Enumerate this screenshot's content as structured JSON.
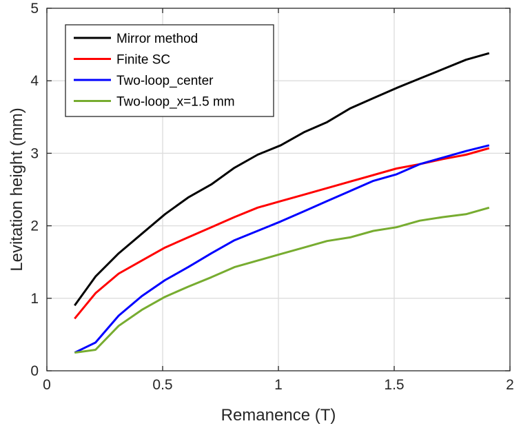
{
  "chart_data": {
    "type": "line",
    "title": "",
    "xlabel": "Remanence (T)",
    "ylabel": "Levitation height (mm)",
    "xlim": [
      0,
      2
    ],
    "ylim": [
      0,
      5
    ],
    "xticks": [
      0,
      0.5,
      1,
      1.5,
      2
    ],
    "xtick_labels": [
      "0",
      "0.5",
      "1",
      "1.5",
      "2"
    ],
    "yticks": [
      0,
      1,
      2,
      3,
      4,
      5
    ],
    "ytick_labels": [
      "0",
      "1",
      "2",
      "3",
      "4",
      "5"
    ],
    "grid": true,
    "legend_position": "top-left",
    "x": [
      0.12,
      0.21,
      0.31,
      0.41,
      0.51,
      0.61,
      0.71,
      0.81,
      0.91,
      1.01,
      1.11,
      1.21,
      1.31,
      1.41,
      1.51,
      1.61,
      1.71,
      1.81,
      1.91
    ],
    "series": [
      {
        "name": "Mirror method",
        "color": "#000000",
        "values": [
          0.9,
          1.3,
          1.62,
          1.89,
          2.16,
          2.39,
          2.57,
          2.8,
          2.98,
          3.11,
          3.29,
          3.43,
          3.62,
          3.76,
          3.9,
          4.03,
          4.16,
          4.29,
          4.38
        ]
      },
      {
        "name": "Finite SC",
        "color": "#ff0000",
        "values": [
          0.72,
          1.07,
          1.34,
          1.52,
          1.7,
          1.84,
          1.98,
          2.12,
          2.25,
          2.34,
          2.43,
          2.52,
          2.61,
          2.7,
          2.79,
          2.85,
          2.92,
          2.98,
          3.07
        ]
      },
      {
        "name": "Two-loop_center",
        "color": "#0000ff",
        "values": [
          0.25,
          0.39,
          0.76,
          1.03,
          1.25,
          1.43,
          1.62,
          1.8,
          1.93,
          2.06,
          2.2,
          2.34,
          2.48,
          2.62,
          2.71,
          2.85,
          2.94,
          3.03,
          3.11
        ]
      },
      {
        "name": "Two-loop_x=1.5 mm",
        "color": "#77ac30",
        "values": [
          0.25,
          0.29,
          0.62,
          0.84,
          1.02,
          1.16,
          1.29,
          1.43,
          1.52,
          1.61,
          1.7,
          1.79,
          1.84,
          1.93,
          1.98,
          2.07,
          2.12,
          2.16,
          2.25
        ]
      }
    ]
  }
}
